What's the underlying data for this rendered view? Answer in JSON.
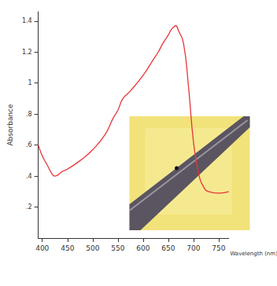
{
  "chart_data": {
    "type": "line",
    "x_label": "Wavelength (nm)",
    "y_label": "Absorbance",
    "x": [
      392,
      400,
      410,
      420,
      425,
      440,
      450,
      475,
      500,
      525,
      540,
      550,
      560,
      575,
      600,
      620,
      630,
      640,
      650,
      655,
      660,
      665,
      670,
      680,
      690,
      700,
      710,
      720,
      730,
      750,
      770
    ],
    "values": [
      0.6,
      0.53,
      0.47,
      0.41,
      0.4,
      0.43,
      0.445,
      0.5,
      0.57,
      0.67,
      0.77,
      0.825,
      0.9,
      0.95,
      1.05,
      1.15,
      1.2,
      1.26,
      1.31,
      1.34,
      1.36,
      1.37,
      1.34,
      1.26,
      0.98,
      0.62,
      0.42,
      0.33,
      0.3,
      0.29,
      0.3
    ],
    "color": "#e8353a",
    "xlim": [
      392,
      770
    ],
    "xticks": [
      400,
      450,
      500,
      550,
      600,
      650,
      700,
      750
    ],
    "ylim": [
      0,
      1.46
    ],
    "yticks": [
      {
        "value": 0.2,
        "label": ".2"
      },
      {
        "value": 0.4,
        "label": ".4"
      },
      {
        "value": 0.6,
        "label": ".6"
      },
      {
        "value": 0.8,
        "label": ".8"
      },
      1,
      1.2,
      1.4
    ],
    "grid": false
  }
}
